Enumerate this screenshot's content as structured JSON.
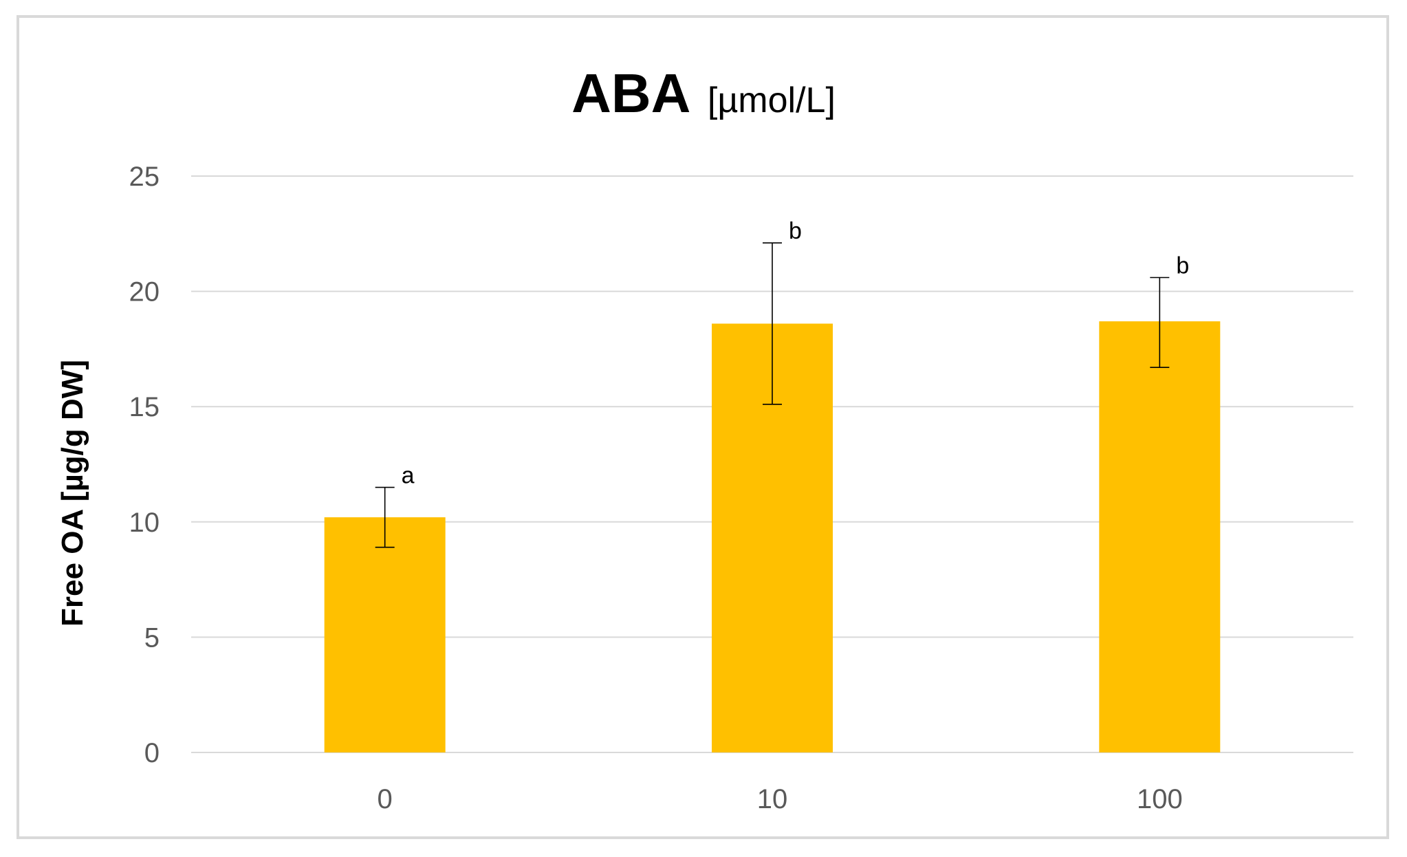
{
  "chart_data": {
    "type": "bar",
    "title": "ABA",
    "title_unit": "[µmol/L]",
    "xlabel": "",
    "ylabel": "Free OA [µg/g DW]",
    "categories": [
      "0",
      "10",
      "100"
    ],
    "values": [
      10.2,
      18.6,
      18.7
    ],
    "error_low": [
      1.3,
      3.5,
      2.0
    ],
    "error_high": [
      1.3,
      3.5,
      1.9
    ],
    "significance_labels": [
      "a",
      "b",
      "b"
    ],
    "ylim": [
      0,
      25
    ],
    "yticks": [
      0,
      5,
      10,
      15,
      20,
      25
    ],
    "grid": true,
    "legend": "none",
    "colors": {
      "bar": "#ffc000",
      "grid": "#d9d9d9",
      "tick_text": "#595959",
      "frame": "#d9d9d9"
    }
  }
}
